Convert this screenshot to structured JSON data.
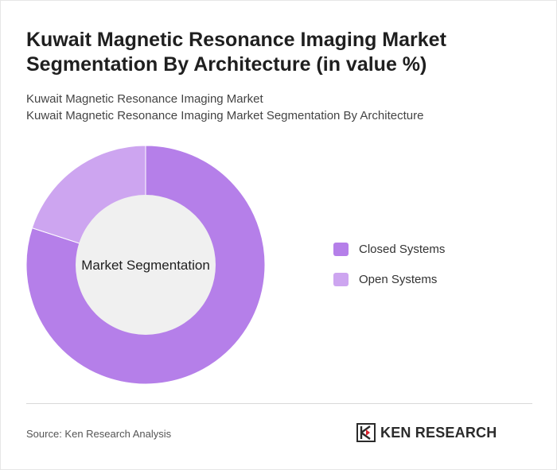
{
  "title": "Kuwait Magnetic Resonance Imaging Market Segmentation By Architecture (in value %)",
  "subtitle_lines": [
    "Kuwait Magnetic Resonance Imaging Market",
    "Kuwait Magnetic Resonance Imaging Market Segmentation By Architecture"
  ],
  "chart_data": {
    "type": "pie",
    "style": "donut",
    "center_label": "Market Segmentation",
    "categories": [
      "Closed Systems",
      "Open Systems"
    ],
    "values": [
      80,
      20
    ],
    "colors": [
      "#b57fe9",
      "#cda5f0"
    ],
    "center_color": "#f0f0f0",
    "legend_placement": "right"
  },
  "source": "Source: Ken Research Analysis",
  "logo": {
    "text": "KEN RESEARCH",
    "icon": "ken-research-logo-icon"
  }
}
